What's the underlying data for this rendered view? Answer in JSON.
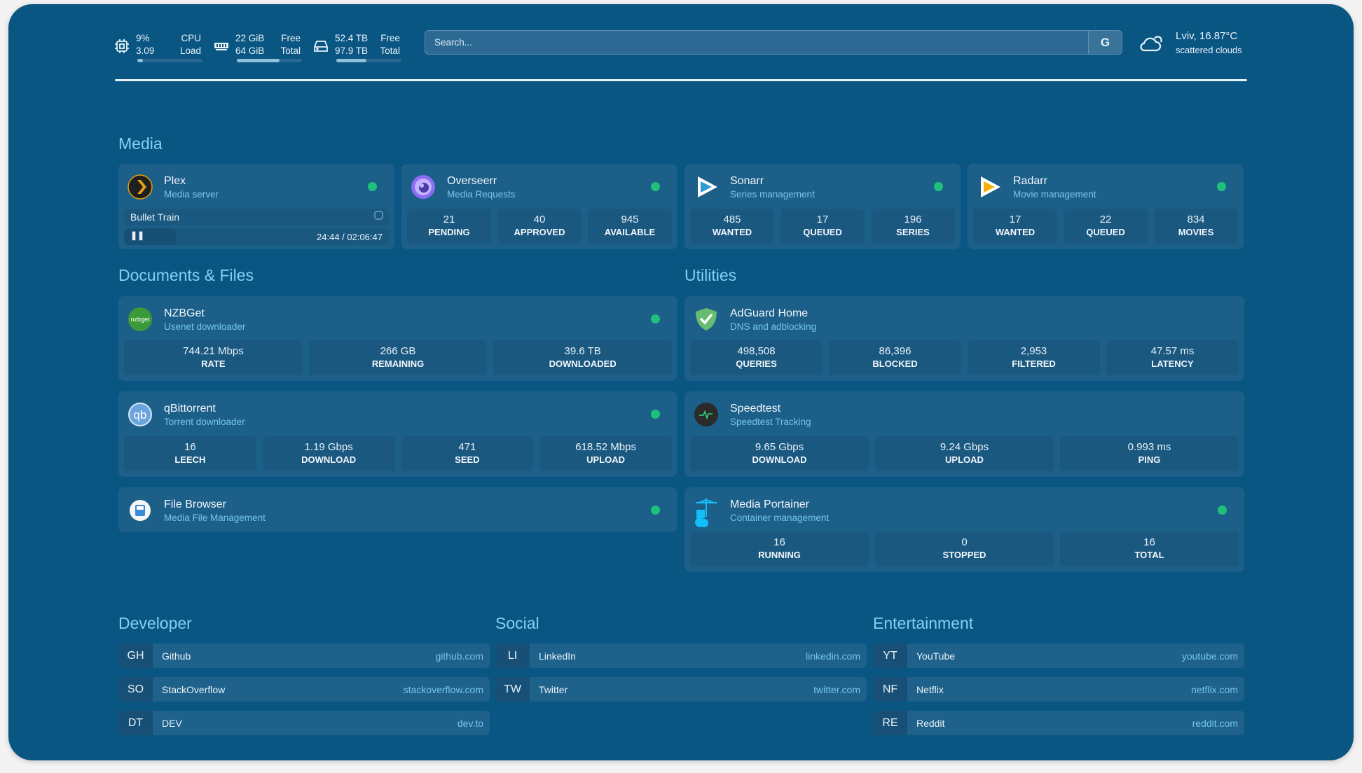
{
  "header": {
    "cpu": {
      "icon": "cpu-icon",
      "value1": "9%",
      "label1": "CPU",
      "value2": "3.09",
      "label2": "Load",
      "bar": 0.09
    },
    "memory": {
      "icon": "memory-icon",
      "value1": "22 GiB",
      "label1": "Free",
      "value2": "64 GiB",
      "label2": "Total",
      "bar": 0.66
    },
    "disk": {
      "icon": "disk-icon",
      "value1": "52.4 TB",
      "label1": "Free",
      "value2": "97.9 TB",
      "label2": "Total",
      "bar": 0.46
    },
    "search": {
      "placeholder": "Search...",
      "provider": "G"
    },
    "weather": {
      "icon": "cloud-icon",
      "location_temp": "Lviv, 16.87°C",
      "condition": "scattered clouds"
    }
  },
  "colors": {
    "background": "#0a5683",
    "card": "#1c5f89",
    "heading": "#7fd2f6",
    "status_ok": "#1fc17a"
  },
  "sections": {
    "media": "Media",
    "documents": "Documents & Files",
    "utilities": "Utilities",
    "developer": "Developer",
    "social": "Social",
    "entertainment": "Entertainment"
  },
  "media": [
    {
      "name": "Plex",
      "desc": "Media server",
      "icon": "plex-icon",
      "status": true,
      "now_playing": {
        "title": "Bullet Train",
        "time": "24:44 / 02:06:47",
        "progress": 0.195,
        "state": "paused"
      }
    },
    {
      "name": "Overseerr",
      "desc": "Media Requests",
      "icon": "overseerr-icon",
      "status": true,
      "stats": [
        {
          "value": "21",
          "label": "PENDING"
        },
        {
          "value": "40",
          "label": "APPROVED"
        },
        {
          "value": "945",
          "label": "AVAILABLE"
        }
      ]
    },
    {
      "name": "Sonarr",
      "desc": "Series management",
      "icon": "sonarr-icon",
      "status": true,
      "stats": [
        {
          "value": "485",
          "label": "WANTED"
        },
        {
          "value": "17",
          "label": "QUEUED"
        },
        {
          "value": "196",
          "label": "SERIES"
        }
      ]
    },
    {
      "name": "Radarr",
      "desc": "Movie management",
      "icon": "radarr-icon",
      "status": true,
      "stats": [
        {
          "value": "17",
          "label": "WANTED"
        },
        {
          "value": "22",
          "label": "QUEUED"
        },
        {
          "value": "834",
          "label": "MOVIES"
        }
      ]
    }
  ],
  "documents": [
    {
      "name": "NZBGet",
      "desc": "Usenet downloader",
      "icon": "nzbget-icon",
      "status": true,
      "stats": [
        {
          "value": "744.21 Mbps",
          "label": "RATE"
        },
        {
          "value": "266 GB",
          "label": "REMAINING"
        },
        {
          "value": "39.6 TB",
          "label": "DOWNLOADED"
        }
      ]
    },
    {
      "name": "qBittorrent",
      "desc": "Torrent downloader",
      "icon": "qbittorrent-icon",
      "status": true,
      "stats": [
        {
          "value": "16",
          "label": "LEECH"
        },
        {
          "value": "1.19 Gbps",
          "label": "DOWNLOAD"
        },
        {
          "value": "471",
          "label": "SEED"
        },
        {
          "value": "618.52 Mbps",
          "label": "UPLOAD"
        }
      ]
    },
    {
      "name": "File Browser",
      "desc": "Media File Management",
      "icon": "filebrowser-icon",
      "status": true
    }
  ],
  "utilities": [
    {
      "name": "AdGuard Home",
      "desc": "DNS and adblocking",
      "icon": "adguard-icon",
      "status": false,
      "stats": [
        {
          "value": "498,508",
          "label": "QUERIES"
        },
        {
          "value": "86,396",
          "label": "BLOCKED"
        },
        {
          "value": "2,953",
          "label": "FILTERED"
        },
        {
          "value": "47.57 ms",
          "label": "LATENCY"
        }
      ]
    },
    {
      "name": "Speedtest",
      "desc": "Speedtest Tracking",
      "icon": "speedtest-icon",
      "status": false,
      "stats": [
        {
          "value": "9.65 Gbps",
          "label": "DOWNLOAD"
        },
        {
          "value": "9.24 Gbps",
          "label": "UPLOAD"
        },
        {
          "value": "0.993 ms",
          "label": "PING"
        }
      ]
    },
    {
      "name": "Media Portainer",
      "desc": "Container management",
      "icon": "portainer-icon",
      "status": true,
      "stats": [
        {
          "value": "16",
          "label": "RUNNING"
        },
        {
          "value": "0",
          "label": "STOPPED"
        },
        {
          "value": "16",
          "label": "TOTAL"
        }
      ]
    }
  ],
  "bookmarks": {
    "developer": [
      {
        "abbr": "GH",
        "name": "Github",
        "url": "github.com"
      },
      {
        "abbr": "SO",
        "name": "StackOverflow",
        "url": "stackoverflow.com"
      },
      {
        "abbr": "DT",
        "name": "DEV",
        "url": "dev.to"
      }
    ],
    "social": [
      {
        "abbr": "LI",
        "name": "LinkedIn",
        "url": "linkedin.com"
      },
      {
        "abbr": "TW",
        "name": "Twitter",
        "url": "twitter.com"
      }
    ],
    "entertainment": [
      {
        "abbr": "YT",
        "name": "YouTube",
        "url": "youtube.com"
      },
      {
        "abbr": "NF",
        "name": "Netflix",
        "url": "netflix.com"
      },
      {
        "abbr": "RE",
        "name": "Reddit",
        "url": "reddit.com"
      }
    ]
  }
}
